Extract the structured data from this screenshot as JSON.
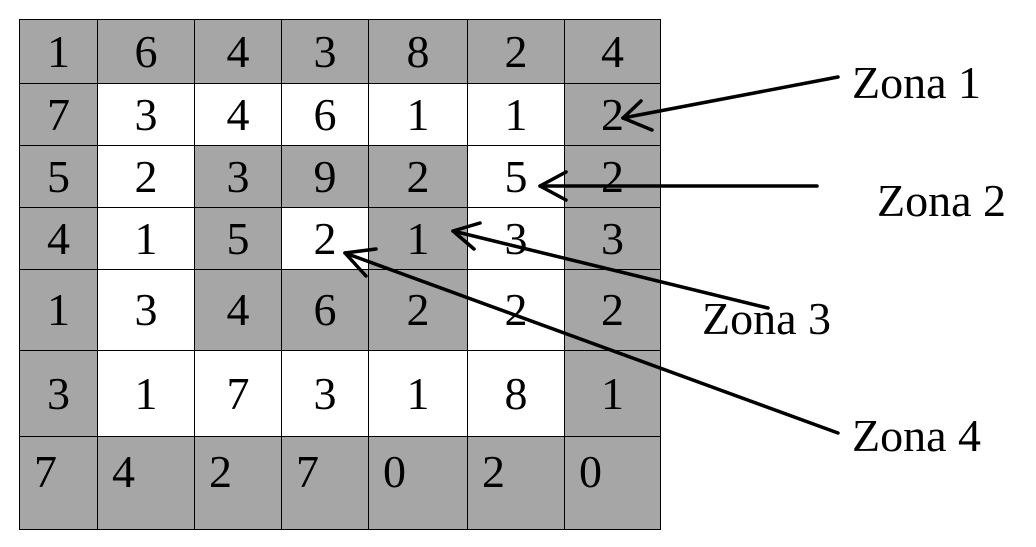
{
  "grid": {
    "rows": [
      {
        "cells": [
          {
            "v": "1",
            "shade": "dark"
          },
          {
            "v": "6",
            "shade": "dark"
          },
          {
            "v": "4",
            "shade": "dark"
          },
          {
            "v": "3",
            "shade": "dark"
          },
          {
            "v": "8",
            "shade": "dark"
          },
          {
            "v": "2",
            "shade": "dark"
          },
          {
            "v": "4",
            "shade": "dark"
          }
        ]
      },
      {
        "cells": [
          {
            "v": "7",
            "shade": "dark"
          },
          {
            "v": "3",
            "shade": "light"
          },
          {
            "v": "4",
            "shade": "light"
          },
          {
            "v": "6",
            "shade": "light"
          },
          {
            "v": "1",
            "shade": "light"
          },
          {
            "v": "1",
            "shade": "light"
          },
          {
            "v": "2",
            "shade": "dark"
          }
        ]
      },
      {
        "cells": [
          {
            "v": "5",
            "shade": "dark"
          },
          {
            "v": "2",
            "shade": "light"
          },
          {
            "v": "3",
            "shade": "dark"
          },
          {
            "v": "9",
            "shade": "dark"
          },
          {
            "v": "2",
            "shade": "dark"
          },
          {
            "v": "5",
            "shade": "light"
          },
          {
            "v": "2",
            "shade": "dark"
          }
        ]
      },
      {
        "cells": [
          {
            "v": "4",
            "shade": "dark"
          },
          {
            "v": "1",
            "shade": "light"
          },
          {
            "v": "5",
            "shade": "dark"
          },
          {
            "v": "2",
            "shade": "light"
          },
          {
            "v": "1",
            "shade": "dark"
          },
          {
            "v": "3",
            "shade": "light"
          },
          {
            "v": "3",
            "shade": "dark"
          }
        ]
      },
      {
        "cells": [
          {
            "v": "1",
            "shade": "dark"
          },
          {
            "v": "3",
            "shade": "light"
          },
          {
            "v": "4",
            "shade": "dark"
          },
          {
            "v": "6",
            "shade": "dark"
          },
          {
            "v": "2",
            "shade": "dark"
          },
          {
            "v": "2",
            "shade": "light"
          },
          {
            "v": "2",
            "shade": "dark"
          }
        ]
      },
      {
        "cells": [
          {
            "v": "3",
            "shade": "dark"
          },
          {
            "v": "1",
            "shade": "light"
          },
          {
            "v": "7",
            "shade": "light"
          },
          {
            "v": "3",
            "shade": "light"
          },
          {
            "v": "1",
            "shade": "light"
          },
          {
            "v": "8",
            "shade": "light"
          },
          {
            "v": "1",
            "shade": "dark"
          }
        ]
      },
      {
        "cells": [
          {
            "v": "7",
            "shade": "dark"
          },
          {
            "v": "4",
            "shade": "dark"
          },
          {
            "v": "2",
            "shade": "dark"
          },
          {
            "v": "7",
            "shade": "dark"
          },
          {
            "v": "0",
            "shade": "dark"
          },
          {
            "v": "2",
            "shade": "dark"
          },
          {
            "v": "0",
            "shade": "dark"
          }
        ]
      }
    ]
  },
  "zones": [
    {
      "label": "Zona 1",
      "target": [
        1,
        6
      ]
    },
    {
      "label": "Zona 2",
      "target": [
        2,
        5
      ]
    },
    {
      "label": "Zona 3",
      "target": [
        3,
        4
      ]
    },
    {
      "label": "Zona 4",
      "target": [
        3,
        3
      ]
    }
  ],
  "colors": {
    "dark": "#a6a6a6",
    "light": "#ffffff",
    "line": "#000000"
  }
}
